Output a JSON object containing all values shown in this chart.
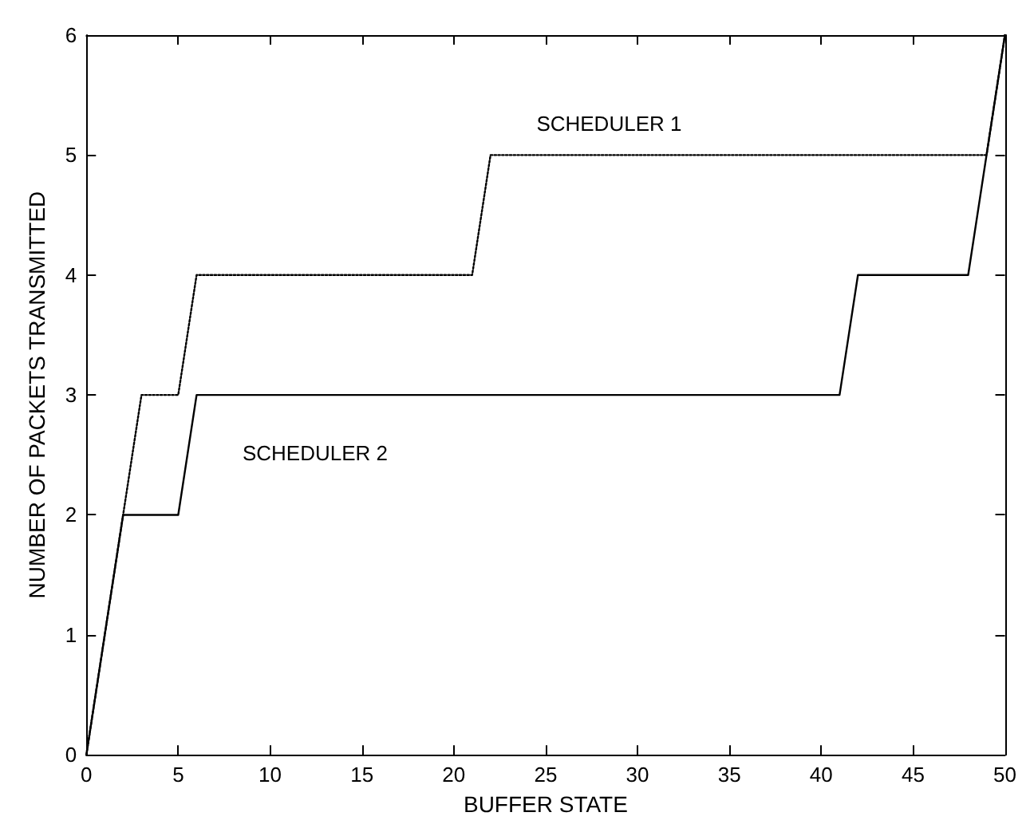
{
  "chart_data": {
    "type": "line",
    "xlabel": "BUFFER STATE",
    "ylabel": "NUMBER OF PACKETS TRANSMITTED",
    "xlim": [
      0,
      50
    ],
    "xticks": [
      0,
      5,
      10,
      15,
      20,
      25,
      30,
      35,
      40,
      45,
      50
    ],
    "ylim": [
      0,
      6
    ],
    "yticks": [
      0,
      1,
      2,
      3,
      4,
      5,
      6
    ],
    "grid": false,
    "legend": false,
    "marker": "none",
    "series": [
      {
        "name": "SCHEDULER 1",
        "color": "#000000",
        "line_style": "dotted",
        "x": [
          0,
          2,
          3,
          5,
          6,
          21,
          22,
          49,
          50
        ],
        "values": [
          0,
          2,
          3,
          3,
          4,
          4,
          5,
          5,
          6
        ]
      },
      {
        "name": "SCHEDULER 2",
        "color": "#000000",
        "line_style": "solid",
        "x": [
          0,
          2,
          5,
          6,
          41,
          42,
          48,
          50
        ],
        "values": [
          0,
          2,
          2,
          3,
          3,
          4,
          4,
          6
        ]
      }
    ]
  }
}
